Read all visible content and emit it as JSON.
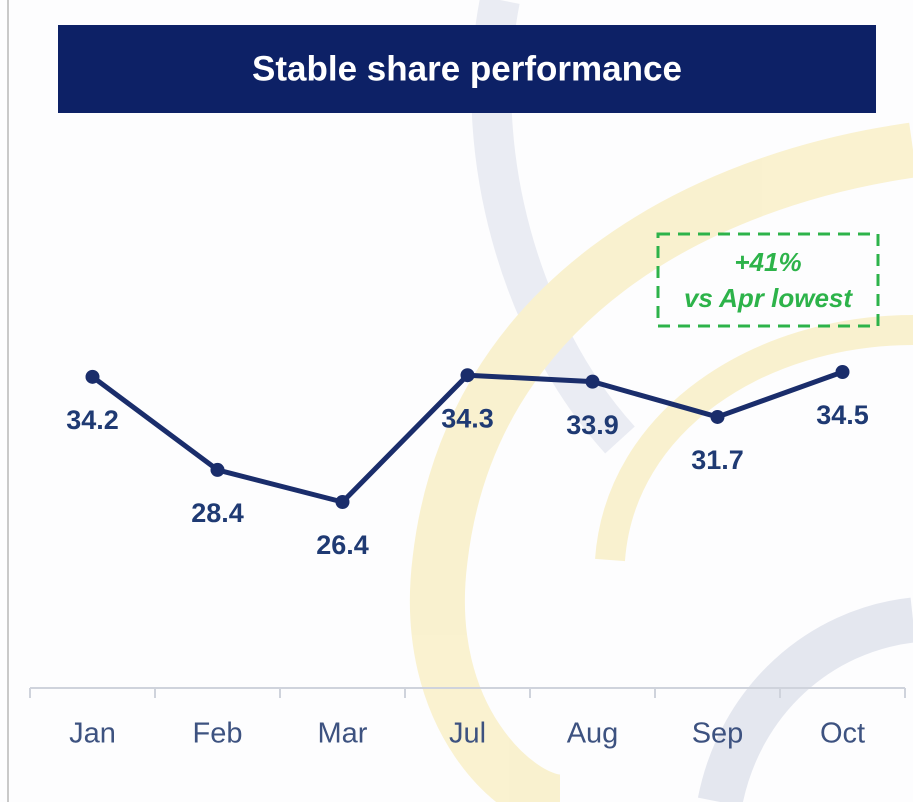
{
  "chart_data": {
    "type": "line",
    "title": "Stable share performance",
    "categories": [
      "Jan",
      "Feb",
      "Mar",
      "Jul",
      "Aug",
      "Sep",
      "Oct"
    ],
    "values": [
      34.2,
      28.4,
      26.4,
      34.3,
      33.9,
      31.7,
      34.5
    ],
    "color": "#1a2d6b",
    "annotation": [
      "+41%",
      "vs Apr lowest"
    ]
  }
}
